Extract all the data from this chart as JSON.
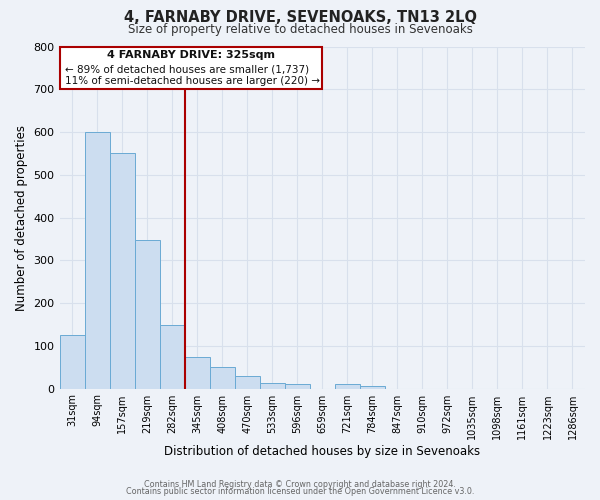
{
  "title": "4, FARNABY DRIVE, SEVENOAKS, TN13 2LQ",
  "subtitle": "Size of property relative to detached houses in Sevenoaks",
  "xlabel": "Distribution of detached houses by size in Sevenoaks",
  "ylabel": "Number of detached properties",
  "bar_labels": [
    "31sqm",
    "94sqm",
    "157sqm",
    "219sqm",
    "282sqm",
    "345sqm",
    "408sqm",
    "470sqm",
    "533sqm",
    "596sqm",
    "659sqm",
    "721sqm",
    "784sqm",
    "847sqm",
    "910sqm",
    "972sqm",
    "1035sqm",
    "1098sqm",
    "1161sqm",
    "1223sqm",
    "1286sqm"
  ],
  "bar_values": [
    125,
    600,
    550,
    348,
    148,
    75,
    50,
    30,
    12,
    10,
    0,
    10,
    5,
    0,
    0,
    0,
    0,
    0,
    0,
    0,
    0
  ],
  "bar_color": "#ccddf0",
  "bar_edge_color": "#6aaad4",
  "vline_x": 4.5,
  "vline_color": "#aa0000",
  "ylim": [
    0,
    800
  ],
  "yticks": [
    0,
    100,
    200,
    300,
    400,
    500,
    600,
    700,
    800
  ],
  "annotation_title": "4 FARNABY DRIVE: 325sqm",
  "annotation_line1": "← 89% of detached houses are smaller (1,737)",
  "annotation_line2": "11% of semi-detached houses are larger (220) →",
  "annotation_box_edgecolor": "#aa0000",
  "annotation_box_facecolor": "#ffffff",
  "background_color": "#eef2f8",
  "grid_color": "#d8e0ec",
  "title_color": "#222222",
  "subtitle_color": "#333333",
  "footer1": "Contains HM Land Registry data © Crown copyright and database right 2024.",
  "footer2": "Contains public sector information licensed under the Open Government Licence v3.0.",
  "footer_color": "#666666"
}
